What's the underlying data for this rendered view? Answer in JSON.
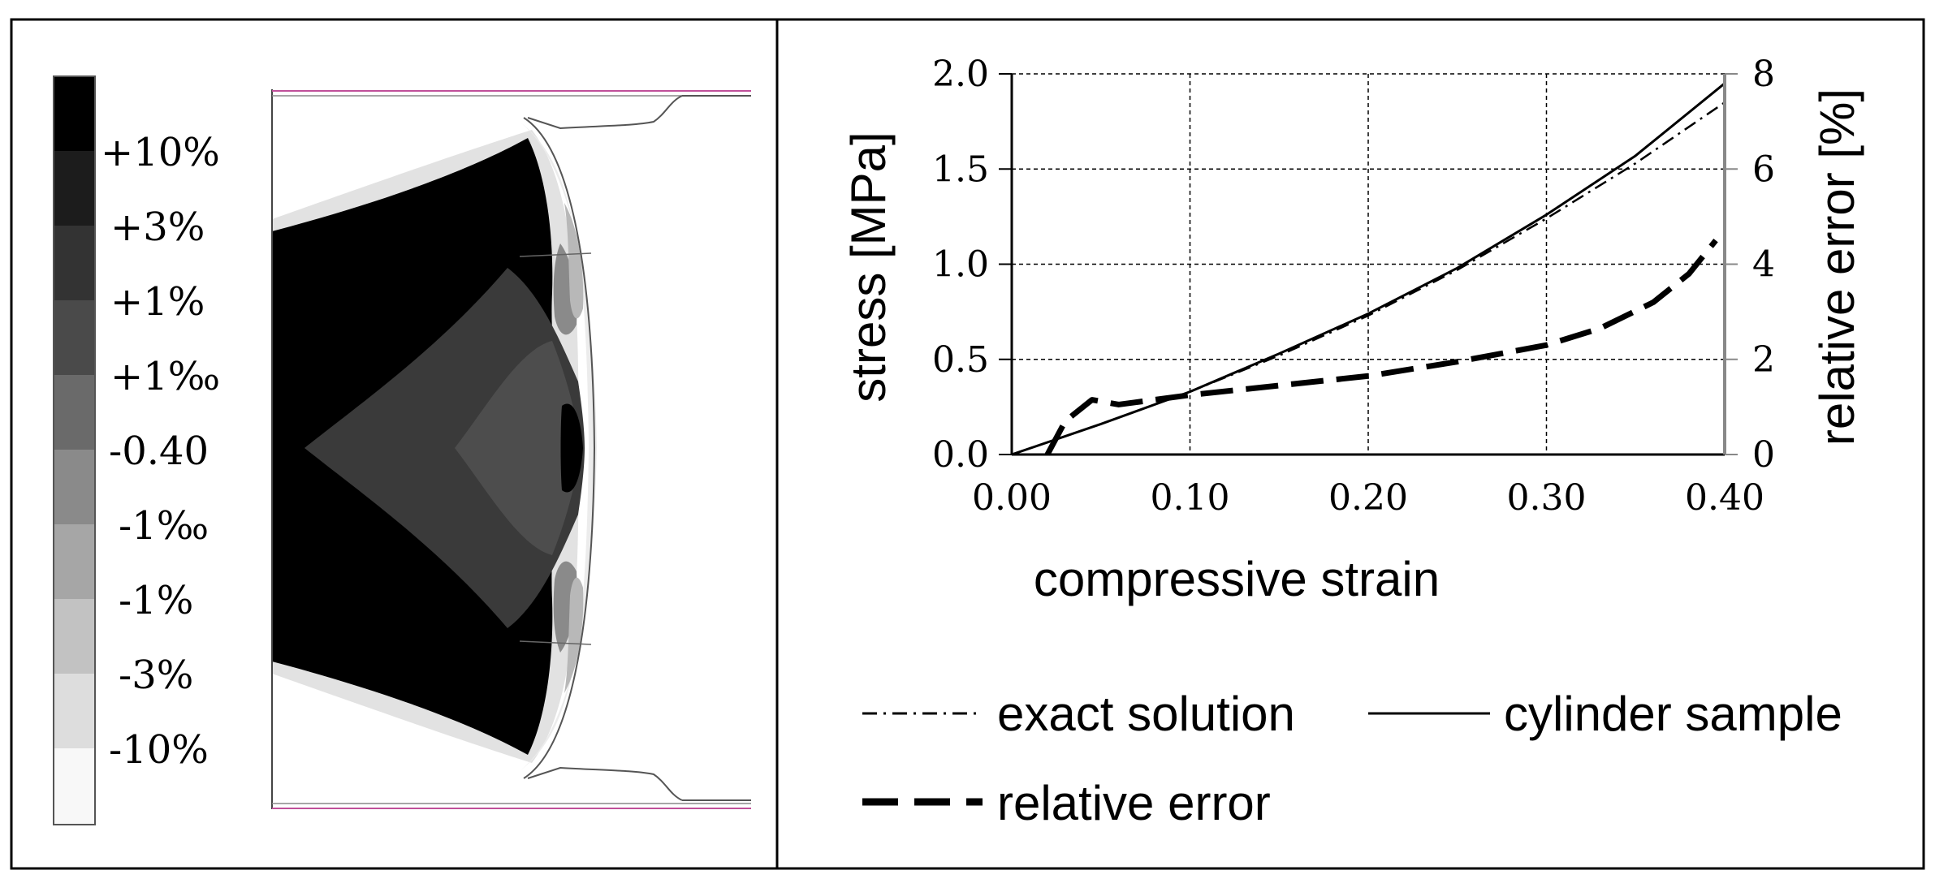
{
  "contour_plot": {
    "scale_labels": [
      "+10%",
      "+3%",
      "+1%",
      "+1‰",
      "-0.40",
      "-1‰",
      "-1%",
      "-3%",
      "-10%"
    ],
    "scale_colors": [
      "#000000",
      "#1c1c1c",
      "#333333",
      "#4a4a4a",
      "#6a6a6a",
      "#8a8a8a",
      "#a6a6a6",
      "#c2c2c2",
      "#dddddd",
      "#f8f8f8"
    ]
  },
  "chart_data": {
    "type": "line",
    "xlabel": "compressive strain",
    "ylabel_left": "stress  [MPa]",
    "ylabel_right": "relative error  [%]",
    "xlim": [
      0.0,
      0.4
    ],
    "ylim_left": [
      0.0,
      2.0
    ],
    "ylim_right": [
      0,
      8
    ],
    "x_ticks": [
      "0.00",
      "0.10",
      "0.20",
      "0.30",
      "0.40"
    ],
    "y_ticks_left": [
      "0.0",
      "0.5",
      "1.0",
      "1.5",
      "2.0"
    ],
    "y_ticks_right": [
      "0",
      "2",
      "4",
      "6",
      "8"
    ],
    "grid": true,
    "series": [
      {
        "name": "exact solution",
        "axis": "left",
        "style": "dash-dot",
        "x": [
          0.0,
          0.05,
          0.1,
          0.15,
          0.2,
          0.25,
          0.3,
          0.35,
          0.4
        ],
        "y": [
          0.0,
          0.16,
          0.33,
          0.52,
          0.73,
          0.97,
          1.24,
          1.53,
          1.85
        ]
      },
      {
        "name": "cylinder sample",
        "axis": "left",
        "style": "solid",
        "x": [
          0.0,
          0.05,
          0.1,
          0.15,
          0.2,
          0.25,
          0.3,
          0.35,
          0.4
        ],
        "y": [
          0.0,
          0.16,
          0.33,
          0.53,
          0.74,
          0.98,
          1.26,
          1.57,
          1.95
        ]
      },
      {
        "name": "relative error",
        "axis": "right",
        "style": "long-dash",
        "x": [
          0.02,
          0.03,
          0.045,
          0.06,
          0.1,
          0.15,
          0.2,
          0.25,
          0.3,
          0.33,
          0.36,
          0.38,
          0.395
        ],
        "y": [
          0.0,
          0.7,
          1.15,
          1.05,
          1.25,
          1.45,
          1.65,
          1.95,
          2.3,
          2.65,
          3.2,
          3.8,
          4.5
        ]
      }
    ],
    "legend": {
      "placement": "bottom",
      "entries": [
        "exact solution",
        "cylinder sample",
        "relative error"
      ]
    }
  }
}
